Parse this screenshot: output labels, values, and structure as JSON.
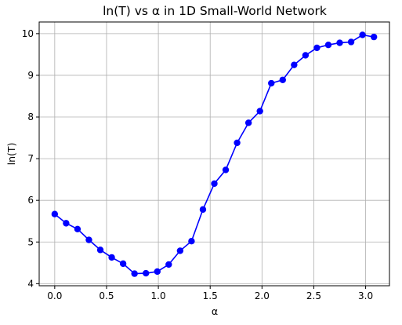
{
  "chart_data": {
    "type": "line",
    "title": "ln(T) vs α in 1D Small-World Network",
    "xlabel": "α",
    "ylabel": "ln(T)",
    "xlim": [
      -0.15,
      3.23
    ],
    "ylim": [
      3.95,
      10.28
    ],
    "xticks": [
      0.0,
      0.5,
      1.0,
      1.5,
      2.0,
      2.5,
      3.0
    ],
    "xtick_labels": [
      "0.0",
      "0.5",
      "1.0",
      "1.5",
      "2.0",
      "2.5",
      "3.0"
    ],
    "yticks": [
      4,
      5,
      6,
      7,
      8,
      9,
      10
    ],
    "ytick_labels": [
      "4",
      "5",
      "6",
      "7",
      "8",
      "9",
      "10"
    ],
    "grid": true,
    "series": [
      {
        "color": "#0000ff",
        "marker": "circle",
        "x": [
          0.0,
          0.11,
          0.22,
          0.33,
          0.44,
          0.55,
          0.66,
          0.77,
          0.88,
          0.99,
          1.1,
          1.21,
          1.32,
          1.43,
          1.54,
          1.65,
          1.76,
          1.87,
          1.98,
          2.09,
          2.2,
          2.31,
          2.42,
          2.53,
          2.64,
          2.75,
          2.86,
          2.97,
          3.08
        ],
        "y": [
          5.67,
          5.45,
          5.31,
          5.05,
          4.81,
          4.63,
          4.48,
          4.24,
          4.25,
          4.29,
          4.46,
          4.79,
          5.02,
          5.78,
          6.4,
          6.73,
          7.38,
          7.86,
          8.14,
          8.81,
          8.89,
          9.25,
          9.48,
          9.66,
          9.73,
          9.78,
          9.8,
          9.97,
          9.92
        ]
      }
    ]
  }
}
